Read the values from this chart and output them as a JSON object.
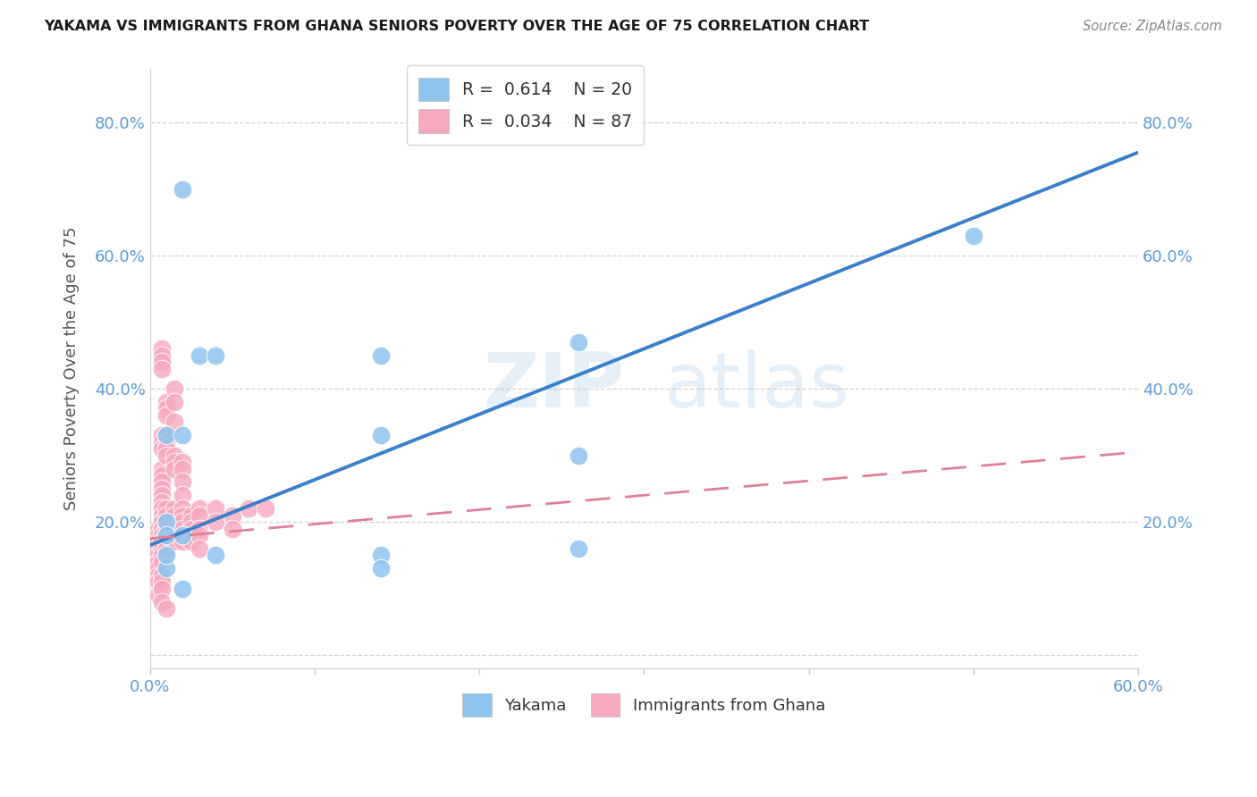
{
  "title": "YAKAMA VS IMMIGRANTS FROM GHANA SENIORS POVERTY OVER THE AGE OF 75 CORRELATION CHART",
  "source": "Source: ZipAtlas.com",
  "ylabel": "Seniors Poverty Over the Age of 75",
  "xlim": [
    0.0,
    0.6
  ],
  "ylim": [
    -0.02,
    0.88
  ],
  "xtick_vals": [
    0.0,
    0.1,
    0.2,
    0.3,
    0.4,
    0.5,
    0.6
  ],
  "ytick_vals": [
    0.0,
    0.2,
    0.4,
    0.6,
    0.8
  ],
  "xtick_labels": [
    "0.0%",
    "",
    "",
    "",
    "",
    "",
    "60.0%"
  ],
  "ytick_labels": [
    "",
    "20.0%",
    "40.0%",
    "60.0%",
    "80.0%"
  ],
  "legend_r1": "R =  0.614",
  "legend_n1": "N = 20",
  "legend_r2": "R =  0.034",
  "legend_n2": "N = 87",
  "color_yakama": "#8EC4EE",
  "color_ghana": "#F5A8BE",
  "color_line_yakama": "#3A7FCC",
  "color_line_ghana": "#E08098",
  "color_ticks": "#5B9BD5",
  "watermark_zip": "ZIP",
  "watermark_atlas": "atlas",
  "yakama_line_x": [
    0.0,
    0.6
  ],
  "yakama_line_y": [
    0.165,
    0.755
  ],
  "ghana_line_x": [
    0.0,
    0.6
  ],
  "ghana_line_y": [
    0.175,
    0.305
  ],
  "yakama_x": [
    0.02,
    0.03,
    0.04,
    0.14,
    0.26,
    0.5,
    0.01,
    0.01,
    0.02,
    0.14,
    0.26,
    0.01,
    0.02,
    0.14,
    0.02,
    0.01,
    0.14,
    0.26,
    0.04,
    0.01
  ],
  "yakama_y": [
    0.7,
    0.45,
    0.45,
    0.45,
    0.47,
    0.63,
    0.33,
    0.2,
    0.33,
    0.33,
    0.3,
    0.18,
    0.18,
    0.15,
    0.1,
    0.13,
    0.13,
    0.16,
    0.15,
    0.15
  ],
  "ghana_x": [
    0.005,
    0.005,
    0.005,
    0.005,
    0.005,
    0.005,
    0.005,
    0.005,
    0.005,
    0.005,
    0.007,
    0.007,
    0.007,
    0.007,
    0.007,
    0.007,
    0.007,
    0.007,
    0.007,
    0.007,
    0.007,
    0.007,
    0.007,
    0.007,
    0.007,
    0.007,
    0.007,
    0.007,
    0.007,
    0.007,
    0.007,
    0.007,
    0.007,
    0.007,
    0.007,
    0.007,
    0.01,
    0.01,
    0.01,
    0.01,
    0.01,
    0.01,
    0.01,
    0.01,
    0.01,
    0.01,
    0.01,
    0.01,
    0.01,
    0.01,
    0.01,
    0.015,
    0.015,
    0.015,
    0.015,
    0.015,
    0.015,
    0.015,
    0.015,
    0.015,
    0.015,
    0.02,
    0.02,
    0.02,
    0.02,
    0.02,
    0.02,
    0.02,
    0.02,
    0.02,
    0.02,
    0.025,
    0.025,
    0.025,
    0.025,
    0.025,
    0.03,
    0.03,
    0.03,
    0.03,
    0.03,
    0.04,
    0.04,
    0.05,
    0.05,
    0.06,
    0.07
  ],
  "ghana_y": [
    0.19,
    0.18,
    0.17,
    0.16,
    0.15,
    0.14,
    0.13,
    0.12,
    0.11,
    0.09,
    0.46,
    0.45,
    0.44,
    0.43,
    0.33,
    0.32,
    0.31,
    0.28,
    0.27,
    0.26,
    0.25,
    0.24,
    0.23,
    0.22,
    0.21,
    0.2,
    0.19,
    0.18,
    0.17,
    0.16,
    0.15,
    0.14,
    0.12,
    0.11,
    0.1,
    0.08,
    0.38,
    0.37,
    0.36,
    0.33,
    0.32,
    0.31,
    0.3,
    0.22,
    0.21,
    0.2,
    0.19,
    0.18,
    0.17,
    0.16,
    0.07,
    0.4,
    0.38,
    0.35,
    0.3,
    0.29,
    0.28,
    0.22,
    0.21,
    0.19,
    0.17,
    0.29,
    0.28,
    0.26,
    0.24,
    0.22,
    0.21,
    0.2,
    0.19,
    0.18,
    0.17,
    0.21,
    0.2,
    0.19,
    0.18,
    0.17,
    0.22,
    0.21,
    0.19,
    0.18,
    0.16,
    0.22,
    0.2,
    0.21,
    0.19,
    0.22,
    0.22
  ]
}
